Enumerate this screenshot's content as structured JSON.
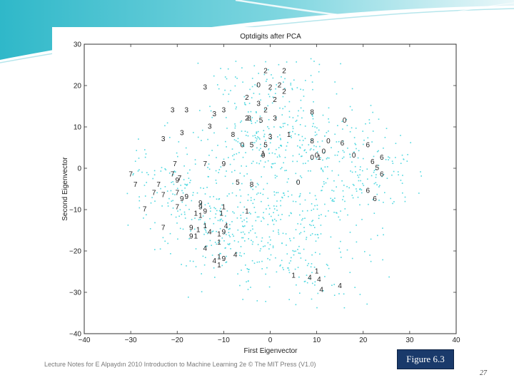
{
  "slide": {
    "footer": "Lecture Notes for E Alpaydın 2010 Introduction to Machine Learning 2e © The MIT Press (V1.0)",
    "figure_label": "Figure 6.3",
    "page_number": "27",
    "accent_color": "#2fb8c9"
  },
  "chart_data": {
    "type": "scatter",
    "title": "Optdigits after PCA",
    "xlabel": "First Eigenvector",
    "ylabel": "Second Eigenvector",
    "xlim": [
      -40,
      40
    ],
    "ylim": [
      -40,
      30
    ],
    "xticks": [
      "−40",
      "−30",
      "−20",
      "−10",
      "0",
      "10",
      "20",
      "30",
      "40"
    ],
    "yticks": [
      "30",
      "20",
      "10",
      "0",
      "−10",
      "−20",
      "−30",
      "−40"
    ],
    "grid": false,
    "point_color": "#4fd8e0",
    "digit_label_color": "#222222",
    "cloud_note": "approx. 1000 unlabeled points spread roughly over x ∈ [−30, 35], y ∈ [−33, 27]",
    "labeled_points": [
      {
        "digit": "2",
        "x": -1,
        "y": 23.5
      },
      {
        "digit": "2",
        "x": 3,
        "y": 23.5
      },
      {
        "digit": "0",
        "x": -2.5,
        "y": 20
      },
      {
        "digit": "2",
        "x": 0,
        "y": 19.5
      },
      {
        "digit": "2",
        "x": 2,
        "y": 20
      },
      {
        "digit": "2",
        "x": 3,
        "y": 18.5
      },
      {
        "digit": "3",
        "x": -14,
        "y": 19.5
      },
      {
        "digit": "2",
        "x": -5,
        "y": 17
      },
      {
        "digit": "3",
        "x": -2.5,
        "y": 15.5
      },
      {
        "digit": "2",
        "x": 1,
        "y": 16.5
      },
      {
        "digit": "2",
        "x": -1,
        "y": 14
      },
      {
        "digit": "3",
        "x": -10,
        "y": 14
      },
      {
        "digit": "3",
        "x": -12,
        "y": 13
      },
      {
        "digit": "3",
        "x": -21,
        "y": 14
      },
      {
        "digit": "3",
        "x": -18,
        "y": 14
      },
      {
        "digit": "2",
        "x": -5,
        "y": 12
      },
      {
        "digit": "8",
        "x": -4.5,
        "y": 12
      },
      {
        "digit": "5",
        "x": -2,
        "y": 11.5
      },
      {
        "digit": "3",
        "x": 1,
        "y": 12
      },
      {
        "digit": "8",
        "x": 9,
        "y": 13.5
      },
      {
        "digit": "0",
        "x": 16,
        "y": 11.5
      },
      {
        "digit": "3",
        "x": -13,
        "y": 10
      },
      {
        "digit": "3",
        "x": -19,
        "y": 8.5
      },
      {
        "digit": "3",
        "x": -23,
        "y": 7
      },
      {
        "digit": "8",
        "x": -8,
        "y": 8
      },
      {
        "digit": "1",
        "x": 4,
        "y": 8
      },
      {
        "digit": "3",
        "x": 0,
        "y": 7.5
      },
      {
        "digit": "8",
        "x": 9,
        "y": 6.5
      },
      {
        "digit": "0",
        "x": 12.5,
        "y": 6.5
      },
      {
        "digit": "6",
        "x": 15.5,
        "y": 6
      },
      {
        "digit": "6",
        "x": 21,
        "y": 5.5
      },
      {
        "digit": "0",
        "x": -6,
        "y": 5.5
      },
      {
        "digit": "5",
        "x": -4,
        "y": 5.5
      },
      {
        "digit": "5",
        "x": -1,
        "y": 5.5
      },
      {
        "digit": "1",
        "x": -1.5,
        "y": 3.5
      },
      {
        "digit": "0",
        "x": 11.5,
        "y": 4
      },
      {
        "digit": "0",
        "x": 10,
        "y": 3
      },
      {
        "digit": "0",
        "x": 9,
        "y": 2.5
      },
      {
        "digit": "1",
        "x": 10.5,
        "y": 2.5
      },
      {
        "digit": "0",
        "x": 18,
        "y": 3
      },
      {
        "digit": "6",
        "x": 24,
        "y": 2.5
      },
      {
        "digit": "6",
        "x": 22,
        "y": 1.5
      },
      {
        "digit": "5",
        "x": 23,
        "y": 0
      },
      {
        "digit": "6",
        "x": 24,
        "y": -1.5
      },
      {
        "digit": "0",
        "x": -1.5,
        "y": 3
      },
      {
        "digit": "7",
        "x": -20.5,
        "y": 1
      },
      {
        "digit": "7",
        "x": -14,
        "y": 1
      },
      {
        "digit": "9",
        "x": -10,
        "y": 1
      },
      {
        "digit": "7",
        "x": -30,
        "y": -1.5
      },
      {
        "digit": "7",
        "x": -21,
        "y": -1.5
      },
      {
        "digit": "7",
        "x": -19.5,
        "y": -2.5
      },
      {
        "digit": "9",
        "x": -20,
        "y": -3
      },
      {
        "digit": "7",
        "x": -29,
        "y": -4
      },
      {
        "digit": "7",
        "x": -24,
        "y": -4
      },
      {
        "digit": "5",
        "x": -7,
        "y": -3.5
      },
      {
        "digit": "8",
        "x": -4,
        "y": -4
      },
      {
        "digit": "0",
        "x": 6,
        "y": -3.5
      },
      {
        "digit": "6",
        "x": 21,
        "y": -5.5
      },
      {
        "digit": "6",
        "x": 22.5,
        "y": -7.5
      },
      {
        "digit": "7",
        "x": -25,
        "y": -6
      },
      {
        "digit": "7",
        "x": -23,
        "y": -6.5
      },
      {
        "digit": "7",
        "x": -20,
        "y": -6
      },
      {
        "digit": "9",
        "x": -19,
        "y": -7.5
      },
      {
        "digit": "9",
        "x": -18,
        "y": -7
      },
      {
        "digit": "9",
        "x": -15,
        "y": -8.5
      },
      {
        "digit": "7",
        "x": -27,
        "y": -10
      },
      {
        "digit": "7",
        "x": -20,
        "y": -9.5
      },
      {
        "digit": "9",
        "x": -15,
        "y": -9.5
      },
      {
        "digit": "1",
        "x": -10,
        "y": -9.5
      },
      {
        "digit": "1",
        "x": -16,
        "y": -11
      },
      {
        "digit": "9",
        "x": -14,
        "y": -10.5
      },
      {
        "digit": "1",
        "x": -15,
        "y": -11.5
      },
      {
        "digit": "1",
        "x": -10.5,
        "y": -11
      },
      {
        "digit": "1",
        "x": -5,
        "y": -10.5
      },
      {
        "digit": "1",
        "x": -14,
        "y": -14
      },
      {
        "digit": "4",
        "x": -9.5,
        "y": -14
      },
      {
        "digit": "9",
        "x": -17,
        "y": -14.5
      },
      {
        "digit": "7",
        "x": -23,
        "y": -14.5
      },
      {
        "digit": "1",
        "x": -15.5,
        "y": -15
      },
      {
        "digit": "4",
        "x": -13,
        "y": -15.5
      },
      {
        "digit": "1",
        "x": -11,
        "y": -16
      },
      {
        "digit": "9",
        "x": -10,
        "y": -15.5
      },
      {
        "digit": "9",
        "x": -17,
        "y": -16.5
      },
      {
        "digit": "1",
        "x": -16,
        "y": -16.5
      },
      {
        "digit": "1",
        "x": -11,
        "y": -18
      },
      {
        "digit": "4",
        "x": -14,
        "y": -19.5
      },
      {
        "digit": "4",
        "x": -7.5,
        "y": -21
      },
      {
        "digit": "1",
        "x": -11,
        "y": -21.5
      },
      {
        "digit": "9",
        "x": -10,
        "y": -22
      },
      {
        "digit": "4",
        "x": -12,
        "y": -22.5
      },
      {
        "digit": "1",
        "x": -11,
        "y": -23.5
      },
      {
        "digit": "1",
        "x": 5,
        "y": -26
      },
      {
        "digit": "4",
        "x": 8.5,
        "y": -26.5
      },
      {
        "digit": "1",
        "x": 10,
        "y": -25
      },
      {
        "digit": "4",
        "x": 10.5,
        "y": -27
      },
      {
        "digit": "4",
        "x": 15,
        "y": -28.5
      },
      {
        "digit": "4",
        "x": 11,
        "y": -29.5
      }
    ]
  }
}
